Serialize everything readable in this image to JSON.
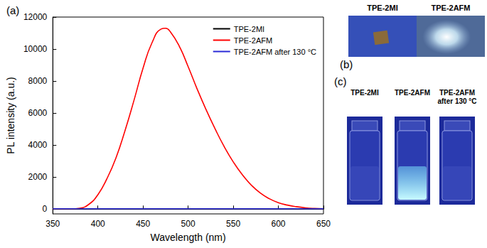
{
  "chart_data": {
    "type": "line",
    "annotations": [
      "(a)"
    ],
    "x_label": "Wavelength (nm)",
    "y_label": "PL intensity (a.u.)",
    "x": [
      350,
      360,
      370,
      380,
      390,
      400,
      410,
      420,
      430,
      440,
      450,
      460,
      470,
      475,
      480,
      490,
      500,
      510,
      520,
      530,
      540,
      550,
      560,
      570,
      580,
      590,
      600,
      610,
      620,
      630,
      640,
      650
    ],
    "xlim": [
      350,
      650
    ],
    "xticks": [
      350,
      400,
      450,
      500,
      550,
      600,
      650
    ],
    "ylim": [
      -300,
      12000
    ],
    "yticks": [
      0,
      2000,
      4000,
      6000,
      8000,
      10000,
      12000
    ],
    "legend": "upper right",
    "grid": false,
    "series": [
      {
        "name": "TPE-2MI",
        "color": "#000000",
        "line_style": "solid",
        "values": [
          10,
          10,
          10,
          10,
          10,
          10,
          10,
          10,
          10,
          10,
          10,
          10,
          10,
          10,
          10,
          10,
          10,
          10,
          10,
          10,
          10,
          10,
          10,
          10,
          10,
          10,
          10,
          10,
          10,
          10,
          10,
          10
        ]
      },
      {
        "name": "TPE-2AFM",
        "color": "#ff0000",
        "line_style": "solid",
        "values": [
          0,
          0,
          0,
          50,
          300,
          900,
          1900,
          3200,
          4900,
          6800,
          8800,
          10400,
          11250,
          11300,
          11100,
          10200,
          8900,
          7500,
          6200,
          5000,
          3900,
          2950,
          2150,
          1500,
          1000,
          650,
          400,
          250,
          150,
          80,
          40,
          20
        ]
      },
      {
        "name": "TPE-2AFM after 130 °C",
        "color": "#2b2bd6",
        "line_style": "solid",
        "values": [
          20,
          20,
          20,
          20,
          20,
          20,
          20,
          20,
          20,
          20,
          20,
          20,
          20,
          20,
          20,
          20,
          20,
          20,
          20,
          20,
          20,
          20,
          20,
          20,
          20,
          20,
          20,
          20,
          20,
          20,
          20,
          20
        ]
      }
    ]
  },
  "photos": [
    {
      "label": "(b)",
      "samples": [
        "TPE-2MI",
        "TPE-2AFM"
      ]
    },
    {
      "label": "(c)",
      "samples": [
        "TPE-2MI",
        "TPE-2AFM",
        "TPE-2AFM after 130 °C"
      ]
    }
  ]
}
